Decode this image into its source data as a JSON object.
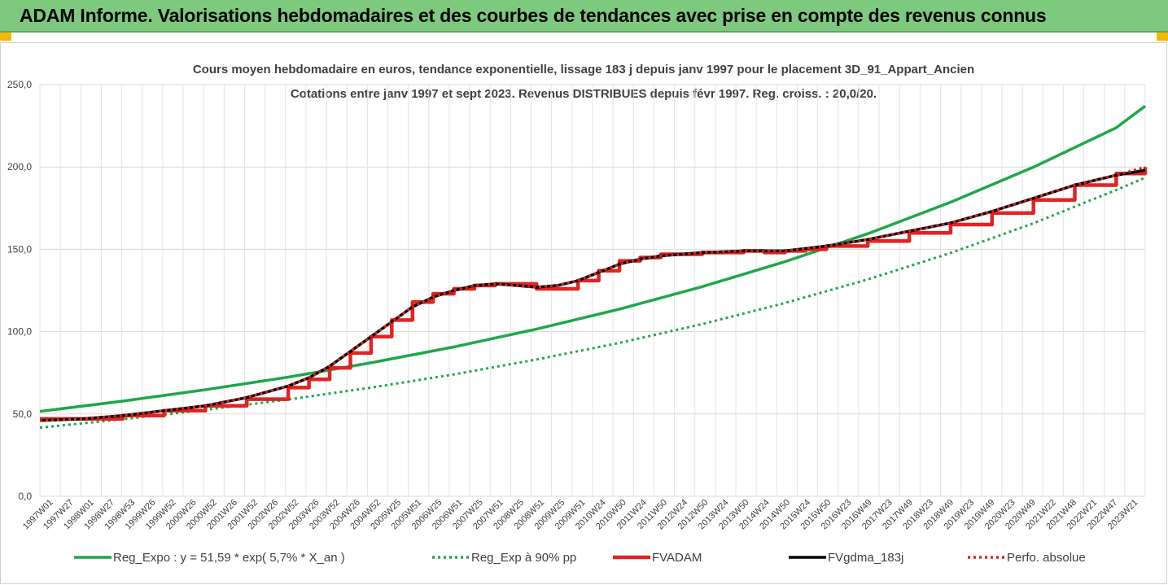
{
  "header": {
    "title": "ADAM Informe. Valorisations hebdomadaires et des courbes de tendances avec prise en compte des revenus connus",
    "background": "#7dc97d",
    "corner_color": "#f5b800"
  },
  "chart_data": {
    "type": "line",
    "title": "Cours moyen hebdomadaire en euros, tendance exponentielle, lissage 183 j depuis janv 1997 pour le placement 3D_91_Appart_Ancien",
    "subtitle": "Cotations entre janv 1997 et sept 2023. Revenus DISTRIBUES depuis févr 1997. Reg. croiss. : 20,0/20.",
    "xlabel": "",
    "ylabel": "",
    "ylim": [
      0,
      250
    ],
    "yticks": [
      "0,0",
      "50,0",
      "100,0",
      "150,0",
      "200,0",
      "250,0"
    ],
    "xlim": [
      1997.0,
      2023.7
    ],
    "grid": true,
    "legend_position": "bottom",
    "categories": [
      "1997W01",
      "1997W27",
      "1998W01",
      "1998W27",
      "1998W53",
      "1999W26",
      "1999W52",
      "2000W26",
      "2000W52",
      "2001W26",
      "2001W52",
      "2002W26",
      "2002W52",
      "2003W26",
      "2003W52",
      "2004W26",
      "2004W52",
      "2005W25",
      "2005W51",
      "2006W25",
      "2006W51",
      "2007W25",
      "2007W51",
      "2008W25",
      "2008W51",
      "2009W25",
      "2009W51",
      "2010W24",
      "2010W50",
      "2011W24",
      "2011W50",
      "2012W24",
      "2012W50",
      "2013W24",
      "2013W50",
      "2014W24",
      "2014W50",
      "2015W24",
      "2015W50",
      "2016W23",
      "2016W49",
      "2017W23",
      "2017W49",
      "2018W23",
      "2018W49",
      "2019W23",
      "2019W49",
      "2020W23",
      "2020W49",
      "2021W22",
      "2021W48",
      "2022W21",
      "2022W47",
      "2023W21"
    ],
    "series": [
      {
        "name": "Reg_Expo : y = 51,59 * exp( 5,7% * X_an )",
        "color": "#1ea84a",
        "style": "solid",
        "points": [
          [
            1997.0,
            51.6
          ],
          [
            1999.0,
            57.8
          ],
          [
            2001.0,
            64.7
          ],
          [
            2003.0,
            72.4
          ],
          [
            2005.0,
            81.1
          ],
          [
            2007.0,
            90.7
          ],
          [
            2009.0,
            101.6
          ],
          [
            2011.0,
            113.7
          ],
          [
            2013.0,
            127.3
          ],
          [
            2015.0,
            142.5
          ],
          [
            2017.0,
            159.5
          ],
          [
            2019.0,
            178.6
          ],
          [
            2021.0,
            199.9
          ],
          [
            2023.0,
            223.8
          ],
          [
            2023.7,
            237.0
          ]
        ]
      },
      {
        "name": "Reg_Exp à 90% pp",
        "color": "#1ea84a",
        "style": "dotted",
        "points": [
          [
            1997.0,
            41.7
          ],
          [
            1999.0,
            46.8
          ],
          [
            2001.0,
            52.5
          ],
          [
            2003.0,
            58.8
          ],
          [
            2005.0,
            66.0
          ],
          [
            2007.0,
            74.0
          ],
          [
            2009.0,
            83.1
          ],
          [
            2011.0,
            93.2
          ],
          [
            2013.0,
            104.6
          ],
          [
            2015.0,
            117.4
          ],
          [
            2017.0,
            131.7
          ],
          [
            2019.0,
            147.8
          ],
          [
            2021.0,
            165.8
          ],
          [
            2023.0,
            186.0
          ],
          [
            2023.7,
            193.5
          ]
        ]
      },
      {
        "name": "FVADAM",
        "color": "#e32222",
        "style": "step",
        "points": [
          [
            1997.0,
            47
          ],
          [
            1998.0,
            47
          ],
          [
            1999.0,
            49
          ],
          [
            2000.0,
            52
          ],
          [
            2001.0,
            55
          ],
          [
            2002.0,
            59
          ],
          [
            2003.0,
            66
          ],
          [
            2003.5,
            71
          ],
          [
            2004.0,
            78
          ],
          [
            2004.5,
            87
          ],
          [
            2005.0,
            97
          ],
          [
            2005.5,
            107
          ],
          [
            2006.0,
            118
          ],
          [
            2006.5,
            123
          ],
          [
            2007.0,
            126
          ],
          [
            2007.5,
            128
          ],
          [
            2008.0,
            129
          ],
          [
            2008.5,
            129
          ],
          [
            2009.0,
            126
          ],
          [
            2009.5,
            126
          ],
          [
            2010.0,
            131
          ],
          [
            2010.5,
            137
          ],
          [
            2011.0,
            143
          ],
          [
            2011.5,
            145
          ],
          [
            2012.0,
            147
          ],
          [
            2013.0,
            148
          ],
          [
            2014.0,
            149
          ],
          [
            2014.5,
            148
          ],
          [
            2015.0,
            149
          ],
          [
            2015.5,
            150
          ],
          [
            2016.0,
            152
          ],
          [
            2017.0,
            155
          ],
          [
            2018.0,
            160
          ],
          [
            2019.0,
            165
          ],
          [
            2020.0,
            172
          ],
          [
            2021.0,
            180
          ],
          [
            2022.0,
            189
          ],
          [
            2023.0,
            196
          ],
          [
            2023.7,
            200
          ]
        ]
      },
      {
        "name": "FVgdma_183j",
        "color": "#000000",
        "style": "solid",
        "points": [
          [
            1997.0,
            46
          ],
          [
            1998.0,
            47
          ],
          [
            1999.0,
            49
          ],
          [
            2000.0,
            52
          ],
          [
            2001.0,
            55
          ],
          [
            2002.0,
            60
          ],
          [
            2003.0,
            67
          ],
          [
            2003.5,
            72
          ],
          [
            2004.0,
            79
          ],
          [
            2004.5,
            88
          ],
          [
            2005.0,
            97
          ],
          [
            2005.5,
            106
          ],
          [
            2006.0,
            115
          ],
          [
            2006.5,
            121
          ],
          [
            2007.0,
            125
          ],
          [
            2007.5,
            128
          ],
          [
            2008.0,
            129
          ],
          [
            2008.5,
            128
          ],
          [
            2009.0,
            127
          ],
          [
            2009.5,
            128
          ],
          [
            2010.0,
            131
          ],
          [
            2010.5,
            136
          ],
          [
            2011.0,
            141
          ],
          [
            2011.5,
            144
          ],
          [
            2012.0,
            146
          ],
          [
            2013.0,
            148
          ],
          [
            2014.0,
            149
          ],
          [
            2015.0,
            149
          ],
          [
            2016.0,
            152
          ],
          [
            2017.0,
            156
          ],
          [
            2018.0,
            161
          ],
          [
            2019.0,
            166
          ],
          [
            2020.0,
            173
          ],
          [
            2021.0,
            181
          ],
          [
            2022.0,
            189
          ],
          [
            2023.0,
            195
          ],
          [
            2023.7,
            198
          ]
        ]
      },
      {
        "name": "Perfo. absolue",
        "color": "#e32222",
        "style": "dotted",
        "points": [
          [
            1997.0,
            46
          ],
          [
            1998.0,
            47
          ],
          [
            1999.0,
            49
          ],
          [
            2000.0,
            52
          ],
          [
            2001.0,
            55
          ],
          [
            2002.0,
            60
          ],
          [
            2003.0,
            67
          ],
          [
            2003.5,
            72
          ],
          [
            2004.0,
            79
          ],
          [
            2004.5,
            88
          ],
          [
            2005.0,
            97
          ],
          [
            2005.5,
            106
          ],
          [
            2006.0,
            115
          ],
          [
            2006.5,
            121
          ],
          [
            2007.0,
            125
          ],
          [
            2007.5,
            128
          ],
          [
            2008.0,
            129
          ],
          [
            2008.5,
            128
          ],
          [
            2009.0,
            127
          ],
          [
            2009.5,
            128
          ],
          [
            2010.0,
            131
          ],
          [
            2010.5,
            136
          ],
          [
            2011.0,
            141
          ],
          [
            2011.5,
            144
          ],
          [
            2012.0,
            146
          ],
          [
            2013.0,
            148
          ],
          [
            2014.0,
            149
          ],
          [
            2015.0,
            149
          ],
          [
            2016.0,
            152
          ],
          [
            2017.0,
            156
          ],
          [
            2018.0,
            161
          ],
          [
            2019.0,
            166
          ],
          [
            2020.0,
            173
          ],
          [
            2021.0,
            181
          ],
          [
            2022.0,
            189
          ],
          [
            2023.0,
            195
          ],
          [
            2023.7,
            200
          ]
        ]
      }
    ]
  }
}
